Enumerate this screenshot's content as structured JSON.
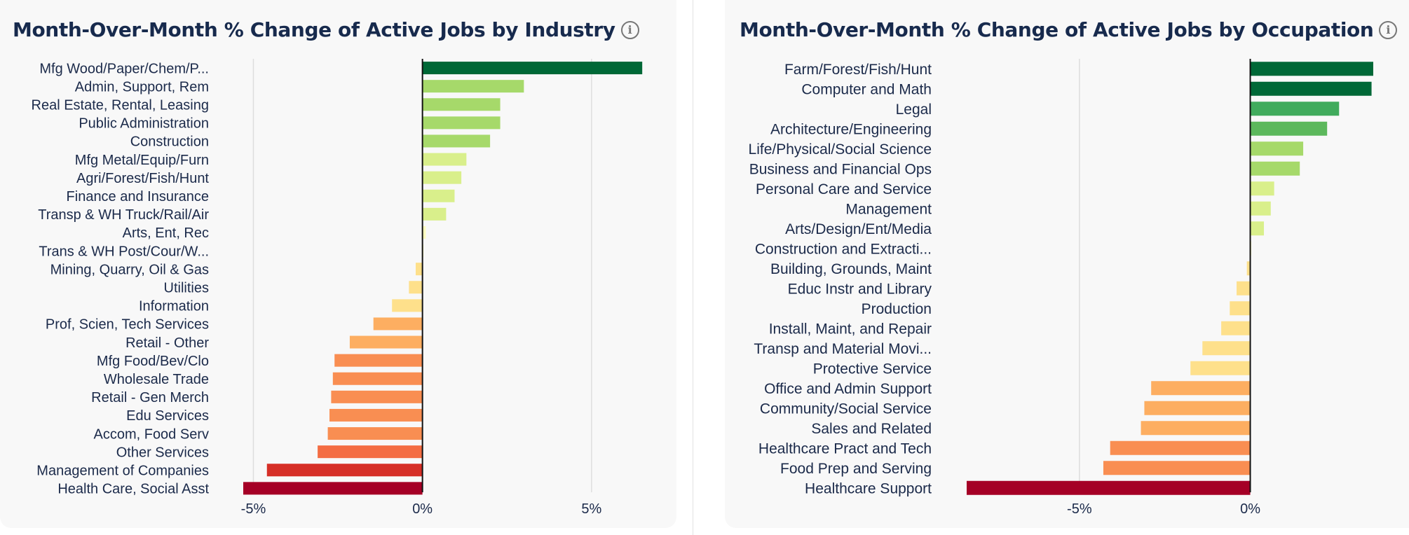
{
  "chart_data": [
    {
      "type": "bar",
      "orientation": "horizontal",
      "title": "Month-Over-Month % Change of Active Jobs by Industry",
      "xlabel": "",
      "ylabel": "",
      "xlim": [
        -5.3,
        6.6
      ],
      "ticks": [
        -5,
        0,
        5
      ],
      "tick_labels": [
        "-5%",
        "0%",
        "5%"
      ],
      "grid": true,
      "categories": [
        "Mfg Wood/Paper/Chem/P...",
        "Admin, Support, Rem",
        "Real Estate, Rental, Leasing",
        "Public Administration",
        "Construction",
        "Mfg Metal/Equip/Furn",
        "Agri/Forest/Fish/Hunt",
        "Finance and Insurance",
        "Transp & WH Truck/Rail/Air",
        "Arts, Ent, Rec",
        "Trans & WH Post/Cour/W...",
        "Mining, Quarry, Oil & Gas",
        "Utilities",
        "Information",
        "Prof, Scien, Tech Services",
        "Retail - Other",
        "Mfg Food/Bev/Clo",
        "Wholesale Trade",
        "Retail - Gen Merch",
        "Edu Services",
        "Accom, Food Serv",
        "Other Services",
        "Management of Companies",
        "Health Care, Social Asst"
      ],
      "values": [
        6.5,
        3.0,
        2.3,
        2.3,
        2.0,
        1.3,
        1.15,
        0.95,
        0.7,
        0.1,
        0.03,
        -0.2,
        -0.4,
        -0.9,
        -1.45,
        -2.15,
        -2.6,
        -2.65,
        -2.7,
        -2.75,
        -2.8,
        -3.1,
        -4.6,
        -5.3
      ],
      "colors": [
        "#006837",
        "#a6d96a",
        "#a6d96a",
        "#a6d96a",
        "#a6d96a",
        "#d9ef8b",
        "#d9ef8b",
        "#d9ef8b",
        "#d9ef8b",
        "#ffffbf",
        "#ffffbf",
        "#fee08b",
        "#fee08b",
        "#fee08b",
        "#fdae61",
        "#fdae61",
        "#f98e52",
        "#f98e52",
        "#f98e52",
        "#f98e52",
        "#f98e52",
        "#f46d43",
        "#d62f27",
        "#a50026"
      ]
    },
    {
      "type": "bar",
      "orientation": "horizontal",
      "title": "Month-Over-Month % Change of Active Jobs by Occupation",
      "xlabel": "",
      "ylabel": "",
      "xlim": [
        -8.3,
        3.6
      ],
      "ticks": [
        -5,
        0
      ],
      "tick_labels": [
        "-5%",
        "0%"
      ],
      "grid": true,
      "categories": [
        "Farm/Forest/Fish/Hunt",
        "Computer and Math",
        "Legal",
        "Architecture/Engineering",
        "Life/Physical/Social Science",
        "Business and Financial Ops",
        "Personal Care and Service",
        "Management",
        "Arts/Design/Ent/Media",
        "Construction and Extracti...",
        "Building, Grounds, Maint",
        "Educ Instr and Library",
        "Production",
        "Install, Maint, and Repair",
        "Transp and Material Movi...",
        "Protective Service",
        "Office and Admin Support",
        "Community/Social Service",
        "Sales and Related",
        "Healthcare Pract and Tech",
        "Food Prep and Serving",
        "Healthcare Support"
      ],
      "values": [
        3.6,
        3.55,
        2.6,
        2.25,
        1.55,
        1.45,
        0.7,
        0.6,
        0.4,
        0.03,
        -0.1,
        -0.4,
        -0.6,
        -0.85,
        -1.4,
        -1.75,
        -2.9,
        -3.1,
        -3.2,
        -4.1,
        -4.3,
        -8.3
      ],
      "colors": [
        "#006837",
        "#006837",
        "#41ab5d",
        "#5cb85c",
        "#a6d96a",
        "#a6d96a",
        "#d9ef8b",
        "#d9ef8b",
        "#d9ef8b",
        "#ffffbf",
        "#fee08b",
        "#fee08b",
        "#fee08b",
        "#fee08b",
        "#fee08b",
        "#fee08b",
        "#fdae61",
        "#fdae61",
        "#fdae61",
        "#f98e52",
        "#f98e52",
        "#a50026"
      ]
    }
  ],
  "colors": {
    "zero_line": "#111111",
    "grid": "#dedede",
    "panel_bg": "#f8f8f8",
    "text": "#1b2a4a"
  },
  "icons": {
    "info": "info-icon"
  },
  "info_glyph": "i"
}
